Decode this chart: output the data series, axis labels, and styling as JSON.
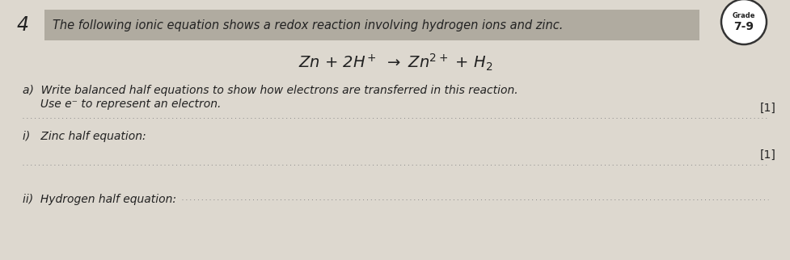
{
  "question_number": "4",
  "header_text": "The following ionic equation shows a redox reaction involving hydrogen ions and zinc.",
  "equation_latex": "Zn + 2H$^+$ $\\rightarrow$ Zn$^{2+}$ + H$_2$",
  "part_a_line1": "a)  Write balanced half equations to show how electrons are transferred in this reaction.",
  "part_a_line2": "     Use e⁻ to represent an electron.",
  "part_i_label": "i)   Zinc half equation: ",
  "part_ii_label": "ii)  Hydrogen half equation:",
  "mark_1": "[1]",
  "mark_2": "[1]",
  "bg_color": "#ddd8cf",
  "header_bg": "#b0aba0",
  "text_color": "#222222",
  "dots_color": "#888888",
  "grade_top": "Grade",
  "grade_bottom": "7-9",
  "fig_width": 9.78,
  "fig_height": 3.22,
  "dpi": 100
}
